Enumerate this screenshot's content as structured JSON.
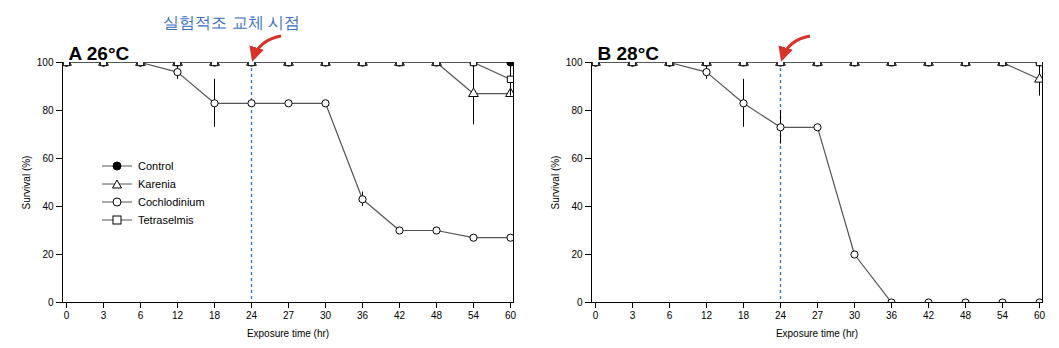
{
  "chart_data": [
    {
      "type": "line",
      "title": "A 26°C",
      "annotation": "실험적조 교체 시점",
      "vline": "24",
      "x_label": "Exposure time (hr)",
      "y_label": "Survival (%)",
      "categories": [
        "0",
        "3",
        "6",
        "12",
        "18",
        "24",
        "27",
        "30",
        "36",
        "42",
        "48",
        "54",
        "60"
      ],
      "ylim": [
        0,
        100
      ],
      "yticks": [
        0,
        20,
        40,
        60,
        80,
        100
      ],
      "legend": "left",
      "series": [
        {
          "name": "Control",
          "color": "#000000",
          "marker": "filled_circle",
          "values": [
            100,
            100,
            100,
            100,
            100,
            100,
            100,
            100,
            100,
            100,
            100,
            100,
            100
          ],
          "errors": [
            null,
            null,
            null,
            null,
            null,
            null,
            null,
            null,
            null,
            null,
            null,
            null,
            null
          ]
        },
        {
          "name": "Karenia",
          "color": "#000000",
          "marker": "open_triangle",
          "values": [
            100,
            100,
            100,
            100,
            100,
            100,
            100,
            100,
            100,
            100,
            100,
            87,
            87
          ],
          "errors": [
            null,
            null,
            null,
            null,
            null,
            null,
            null,
            null,
            null,
            null,
            null,
            13,
            null
          ]
        },
        {
          "name": "Cochlodinium",
          "color": "#000000",
          "marker": "open_circle",
          "values": [
            100,
            100,
            100,
            96,
            83,
            83,
            83,
            83,
            43,
            30,
            30,
            27,
            27
          ],
          "errors": [
            null,
            null,
            null,
            3,
            10,
            null,
            null,
            null,
            3,
            null,
            null,
            null,
            null
          ]
        },
        {
          "name": "Tetraselmis",
          "color": "#000000",
          "marker": "open_square",
          "values": [
            100,
            100,
            100,
            100,
            100,
            100,
            100,
            100,
            100,
            100,
            100,
            100,
            93
          ],
          "errors": [
            null,
            null,
            null,
            null,
            null,
            null,
            null,
            null,
            null,
            null,
            null,
            null,
            7
          ]
        }
      ]
    },
    {
      "type": "line",
      "title": "B 28°C",
      "vline": "24",
      "x_label": "Exposure time (hr)",
      "y_label": "Survival (%)",
      "categories": [
        "0",
        "3",
        "6",
        "12",
        "18",
        "24",
        "27",
        "30",
        "36",
        "42",
        "48",
        "54",
        "60"
      ],
      "ylim": [
        0,
        100
      ],
      "yticks": [
        0,
        20,
        40,
        60,
        80,
        100
      ],
      "series": [
        {
          "name": "Control",
          "color": "#000000",
          "marker": "filled_circle",
          "values": [
            100,
            100,
            100,
            100,
            100,
            100,
            100,
            100,
            100,
            100,
            100,
            100,
            100
          ],
          "errors": [
            null,
            null,
            null,
            null,
            null,
            null,
            null,
            null,
            null,
            null,
            null,
            null,
            null
          ]
        },
        {
          "name": "Karenia",
          "color": "#000000",
          "marker": "open_triangle",
          "values": [
            100,
            100,
            100,
            100,
            100,
            100,
            100,
            100,
            100,
            100,
            100,
            100,
            93
          ],
          "errors": [
            null,
            null,
            null,
            null,
            null,
            null,
            null,
            null,
            null,
            null,
            null,
            null,
            7
          ]
        },
        {
          "name": "Cochlodinium",
          "color": "#000000",
          "marker": "open_circle",
          "values": [
            100,
            100,
            100,
            96,
            83,
            73,
            73,
            20,
            0,
            0,
            0,
            0,
            0
          ],
          "errors": [
            null,
            null,
            null,
            3,
            10,
            7,
            null,
            null,
            null,
            null,
            null,
            null,
            null
          ]
        },
        {
          "name": "Tetraselmis",
          "color": "#000000",
          "marker": "open_square",
          "values": [
            100,
            100,
            100,
            100,
            100,
            100,
            100,
            100,
            100,
            100,
            100,
            100,
            100
          ],
          "errors": [
            null,
            null,
            null,
            null,
            null,
            null,
            null,
            null,
            null,
            null,
            null,
            null,
            null
          ]
        }
      ]
    }
  ]
}
